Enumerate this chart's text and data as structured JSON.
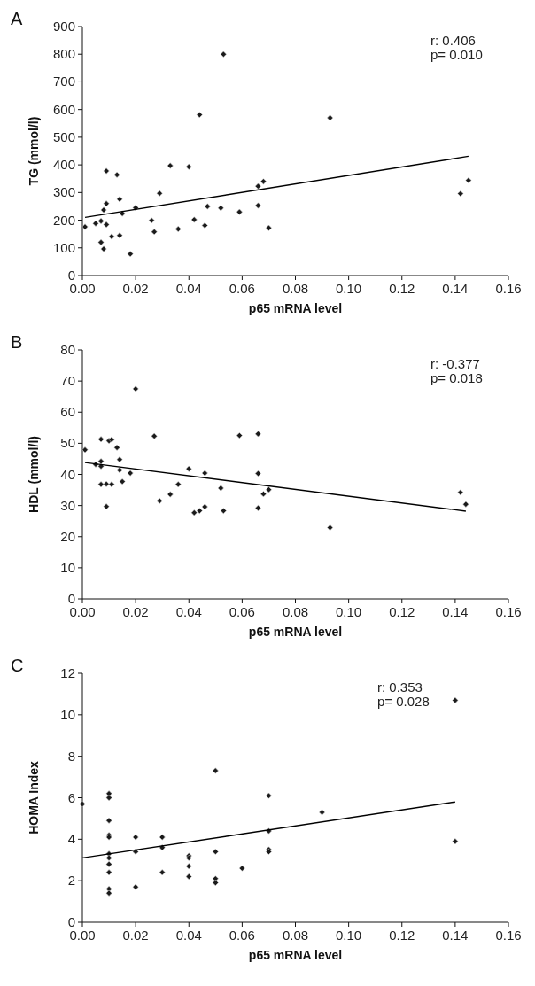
{
  "chart_data": [
    {
      "type": "scatter",
      "title": "A",
      "xlabel": "p65 mRNA level",
      "ylabel": "TG (mmol/l)",
      "xlim": [
        0,
        0.16
      ],
      "xticks": [
        {
          "value": 0,
          "label": "0.00"
        },
        {
          "value": 0.02,
          "label": "0.02"
        },
        {
          "value": 0.04,
          "label": "0.04"
        },
        {
          "value": 0.06,
          "label": "0.06"
        },
        {
          "value": 0.08,
          "label": "0.08"
        },
        {
          "value": 0.1,
          "label": "0.10"
        },
        {
          "value": 0.12,
          "label": "0.12"
        },
        {
          "value": 0.14,
          "label": "0.14"
        },
        {
          "value": 0.16,
          "label": "0.16"
        }
      ],
      "ylim": [
        0,
        900
      ],
      "yticks": [
        0,
        100,
        200,
        300,
        400,
        500,
        600,
        700,
        800,
        900
      ],
      "annotations": [
        "r: 0.406",
        "p= 0.010"
      ],
      "series": [
        {
          "marker": "diamond",
          "color": "#1a1a1a",
          "x": [
            0.001,
            0.005,
            0.007,
            0.008,
            0.007,
            0.008,
            0.009,
            0.009,
            0.009,
            0.011,
            0.013,
            0.014,
            0.014,
            0.015,
            0.018,
            0.02,
            0.026,
            0.027,
            0.029,
            0.033,
            0.036,
            0.04,
            0.042,
            0.044,
            0.046,
            0.047,
            0.052,
            0.053,
            0.059,
            0.066,
            0.066,
            0.068,
            0.07,
            0.093,
            0.142,
            0.145
          ],
          "values": [
            176,
            188,
            120,
            96,
            197,
            237,
            184,
            378,
            260,
            141,
            364,
            145,
            276,
            224,
            78,
            245,
            199,
            158,
            297,
            397,
            168,
            393,
            202,
            581,
            181,
            250,
            244,
            800,
            230,
            323,
            253,
            340,
            172,
            570,
            296,
            344
          ]
        },
        {
          "type": "line",
          "marker": "none",
          "color": "#000000",
          "x": [
            0.001,
            0.145
          ],
          "values": [
            210,
            431
          ]
        }
      ]
    },
    {
      "type": "scatter",
      "title": "B",
      "xlabel": "p65 mRNA level",
      "ylabel": "HDL (mmol/l)",
      "xlim": [
        0,
        0.16
      ],
      "xticks": [
        {
          "value": 0,
          "label": "0.00"
        },
        {
          "value": 0.02,
          "label": "0.02"
        },
        {
          "value": 0.04,
          "label": "0.04"
        },
        {
          "value": 0.06,
          "label": "0.06"
        },
        {
          "value": 0.08,
          "label": "0.08"
        },
        {
          "value": 0.1,
          "label": "0.10"
        },
        {
          "value": 0.12,
          "label": "0.12"
        },
        {
          "value": 0.14,
          "label": "0.14"
        },
        {
          "value": 0.16,
          "label": "0.16"
        }
      ],
      "ylim": [
        0,
        80
      ],
      "yticks": [
        0,
        10,
        20,
        30,
        40,
        50,
        60,
        70,
        80
      ],
      "annotations": [
        "r: -0.377",
        "p= 0.018"
      ],
      "series": [
        {
          "marker": "diamond",
          "color": "#1a1a1a",
          "x": [
            0.001,
            0.005,
            0.007,
            0.007,
            0.007,
            0.007,
            0.009,
            0.009,
            0.01,
            0.011,
            0.011,
            0.013,
            0.014,
            0.014,
            0.015,
            0.018,
            0.02,
            0.027,
            0.029,
            0.033,
            0.036,
            0.04,
            0.042,
            0.044,
            0.046,
            0.046,
            0.052,
            0.053,
            0.059,
            0.066,
            0.066,
            0.066,
            0.068,
            0.07,
            0.093,
            0.142,
            0.144
          ],
          "values": [
            47.9,
            43.2,
            44.2,
            42.6,
            51.3,
            36.8,
            36.9,
            29.7,
            50.8,
            51.2,
            36.8,
            48.6,
            44.8,
            41.4,
            37.7,
            40.4,
            67.5,
            52.3,
            31.5,
            33.6,
            36.8,
            41.8,
            27.7,
            28.3,
            29.6,
            40.4,
            35.6,
            28.3,
            52.5,
            53.0,
            40.3,
            29.2,
            33.7,
            35.1,
            22.9,
            34.2,
            30.4
          ]
        },
        {
          "type": "line",
          "marker": "none",
          "color": "#000000",
          "x": [
            0.001,
            0.144
          ],
          "values": [
            43.8,
            28.2
          ]
        }
      ]
    },
    {
      "type": "scatter",
      "title": "C",
      "xlabel": "p65 mRNA level",
      "ylabel": "HOMA Index",
      "xlim": [
        0,
        0.16
      ],
      "xticks": [
        {
          "value": 0,
          "label": "0.00"
        },
        {
          "value": 0.02,
          "label": "0.02"
        },
        {
          "value": 0.04,
          "label": "0.04"
        },
        {
          "value": 0.06,
          "label": "0.06"
        },
        {
          "value": 0.08,
          "label": "0.08"
        },
        {
          "value": 0.1,
          "label": "0.10"
        },
        {
          "value": 0.12,
          "label": "0.12"
        },
        {
          "value": 0.14,
          "label": "0.14"
        },
        {
          "value": 0.16,
          "label": "0.16"
        }
      ],
      "ylim": [
        0,
        12
      ],
      "yticks": [
        0,
        2,
        4,
        6,
        8,
        10,
        12
      ],
      "annotations": [
        "r: 0.353",
        "p= 0.028"
      ],
      "series": [
        {
          "marker": "diamond",
          "color": "#1a1a1a",
          "x": [
            0,
            0.01,
            0.01,
            0.01,
            0.01,
            0.01,
            0.01,
            0.01,
            0.01,
            0.01,
            0.01,
            0.01,
            0.02,
            0.02,
            0.02,
            0.03,
            0.03,
            0.03,
            0.04,
            0.04,
            0.04,
            0.04,
            0.05,
            0.05,
            0.05,
            0.05,
            0.06,
            0.07,
            0.07,
            0.07,
            0.07,
            0.09,
            0.14,
            0.14
          ],
          "values": [
            5.7,
            6.2,
            6.0,
            4.9,
            4.2,
            4.1,
            3.3,
            3.1,
            2.8,
            2.4,
            1.6,
            1.4,
            4.1,
            3.4,
            1.7,
            4.1,
            3.6,
            2.4,
            3.2,
            3.1,
            2.7,
            2.2,
            7.3,
            3.4,
            2.1,
            1.9,
            2.6,
            6.1,
            4.4,
            3.5,
            3.4,
            5.3,
            10.7,
            3.9
          ]
        },
        {
          "type": "line",
          "marker": "none",
          "color": "#000000",
          "x": [
            0,
            0.14
          ],
          "values": [
            3.1,
            5.8
          ]
        }
      ]
    }
  ]
}
